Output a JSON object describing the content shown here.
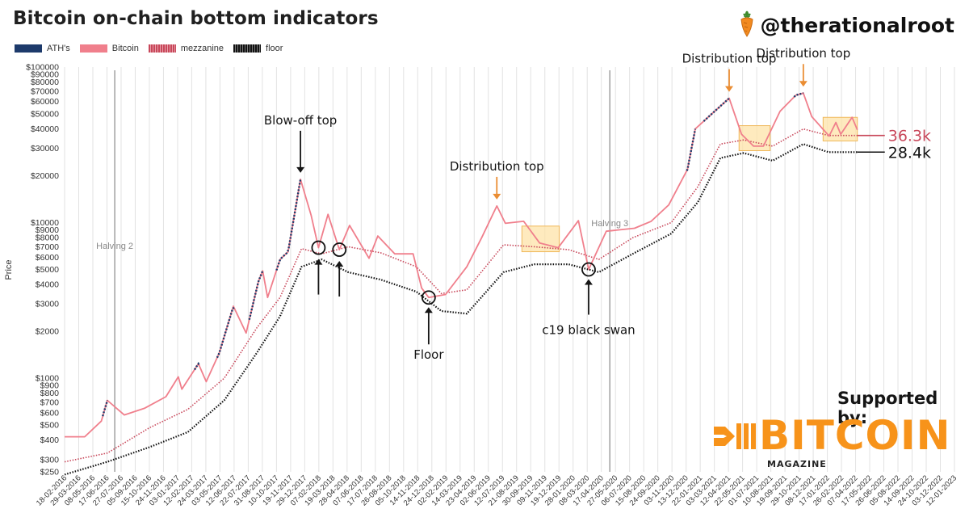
{
  "header": {
    "title": "Bitcoin on-chain bottom indicators",
    "handle": "@therationalroot"
  },
  "sponsor": {
    "supported_by": "Supported by:",
    "brand_name": "BITCOIN",
    "brand_sub": "MAGAZINE",
    "brand_color": "#f7931a"
  },
  "colors": {
    "ath": "#1d3a6b",
    "bitcoin": "#f07f8c",
    "mezzanine": "#c8475a",
    "floor": "#111111",
    "highlight_fill": "#fde3a8",
    "highlight_stroke": "#f0b85a",
    "annotation_arrow_orange": "#ea8d33",
    "halving_line": "#999999",
    "callout_red": "#c8475a",
    "callout_black": "#111111"
  },
  "chart_data": {
    "type": "line",
    "title": "Bitcoin on-chain bottom indicators",
    "ylabel": "Price",
    "xlabel": "",
    "yscale": "log",
    "ylim": [
      250,
      100000
    ],
    "xlim": [
      "2016-02-18",
      "2023-01-12"
    ],
    "y_ticks": [
      250,
      300,
      400,
      500,
      600,
      700,
      800,
      900,
      1000,
      2000,
      3000,
      4000,
      5000,
      6000,
      7000,
      8000,
      9000,
      10000,
      20000,
      30000,
      40000,
      50000,
      60000,
      70000,
      80000,
      90000,
      100000
    ],
    "y_tick_labels": [
      "$250",
      "$300",
      "$400",
      "$500",
      "$600",
      "$700",
      "$800",
      "$900",
      "$1000",
      "$2000",
      "$3000",
      "$4000",
      "$5000",
      "$6000",
      "$7000",
      "$8000",
      "$9000",
      "$10000",
      "$20000",
      "$30000",
      "$40000",
      "$50000",
      "$60000",
      "$70000",
      "$80000",
      "$90000",
      "$100000"
    ],
    "x_tick_labels": [
      "18-02-2016",
      "29-03-2016",
      "08-05-2016",
      "17-06-2016",
      "27-07-2016",
      "05-09-2016",
      "15-10-2016",
      "24-11-2016",
      "03-01-2017",
      "12-02-2017",
      "24-03-2017",
      "03-05-2017",
      "12-06-2017",
      "22-07-2017",
      "31-08-2017",
      "10-10-2017",
      "19-11-2017",
      "29-12-2017",
      "07-02-2018",
      "19-03-2018",
      "28-04-2018",
      "07-06-2018",
      "17-07-2018",
      "26-08-2018",
      "05-10-2018",
      "14-11-2018",
      "24-12-2018",
      "02-02-2019",
      "14-03-2019",
      "23-04-2019",
      "02-06-2019",
      "12-07-2019",
      "21-08-2019",
      "30-09-2019",
      "09-11-2019",
      "19-12-2019",
      "28-01-2020",
      "08-03-2020",
      "17-04-2020",
      "27-05-2020",
      "06-07-2020",
      "15-08-2020",
      "24-09-2020",
      "03-11-2020",
      "13-12-2020",
      "22-01-2021",
      "03-03-2021",
      "12-04-2021",
      "22-05-2021",
      "01-07-2021",
      "10-08-2021",
      "19-09-2021",
      "29-10-2021",
      "08-12-2021",
      "17-01-2022",
      "26-02-2022",
      "07-04-2022",
      "17-05-2022",
      "26-06-2022",
      "05-08-2022",
      "14-09-2022",
      "24-10-2022",
      "03-12-2022",
      "12-01-2023"
    ],
    "grid": true,
    "legend_placement": "top-left",
    "legend": [
      "ATH's",
      "Bitcoin",
      "mezzanine",
      "floor"
    ],
    "series": [
      {
        "name": "Bitcoin",
        "x": [
          "2016-02-18",
          "2016-04-15",
          "2016-06-01",
          "2016-06-18",
          "2016-08-05",
          "2016-10-01",
          "2016-12-01",
          "2017-01-05",
          "2017-01-15",
          "2017-03-03",
          "2017-03-25",
          "2017-05-01",
          "2017-06-10",
          "2017-07-16",
          "2017-08-20",
          "2017-09-01",
          "2017-09-15",
          "2017-10-20",
          "2017-11-12",
          "2017-12-17",
          "2018-01-16",
          "2018-02-06",
          "2018-03-05",
          "2018-04-06",
          "2018-05-05",
          "2018-06-29",
          "2018-07-24",
          "2018-09-10",
          "2018-11-01",
          "2018-11-25",
          "2018-12-15",
          "2019-02-01",
          "2019-04-02",
          "2019-05-14",
          "2019-06-26",
          "2019-07-20",
          "2019-09-10",
          "2019-10-25",
          "2019-12-17",
          "2020-02-12",
          "2020-03-12",
          "2020-05-01",
          "2020-07-20",
          "2020-09-05",
          "2020-10-25",
          "2020-12-17",
          "2021-01-08",
          "2021-02-15",
          "2021-04-14",
          "2021-05-19",
          "2021-06-22",
          "2021-07-20",
          "2021-09-05",
          "2021-10-20",
          "2021-11-10",
          "2021-12-04",
          "2022-01-22",
          "2022-02-10",
          "2022-02-24",
          "2022-03-28",
          "2022-04-12"
        ],
        "values": [
          420,
          420,
          530,
          720,
          580,
          640,
          760,
          1020,
          850,
          1240,
          950,
          1450,
          2900,
          1950,
          4200,
          4900,
          3300,
          5800,
          6500,
          19000,
          11200,
          6900,
          11300,
          6700,
          9600,
          5900,
          8200,
          6300,
          6300,
          3800,
          3300,
          3450,
          5200,
          8000,
          12800,
          9900,
          10200,
          7400,
          6900,
          10300,
          5000,
          8800,
          9200,
          10200,
          13000,
          22000,
          40000,
          48000,
          63000,
          37000,
          31000,
          31000,
          52000,
          66000,
          68000,
          48000,
          36000,
          44000,
          37000,
          47500,
          39500
        ]
      },
      {
        "name": "mezzanine",
        "x": [
          "2016-02-18",
          "2016-06-18",
          "2016-10-15",
          "2017-02-01",
          "2017-05-15",
          "2017-08-15",
          "2017-10-20",
          "2017-12-20",
          "2018-02-15",
          "2018-05-01",
          "2018-08-01",
          "2018-11-10",
          "2019-01-20",
          "2019-04-02",
          "2019-07-15",
          "2019-10-10",
          "2020-01-15",
          "2020-04-10",
          "2020-07-15",
          "2020-11-01",
          "2021-01-15",
          "2021-03-20",
          "2021-05-25",
          "2021-08-15",
          "2021-11-10",
          "2022-01-20",
          "2022-03-10",
          "2022-04-12"
        ],
        "values": [
          290,
          330,
          480,
          630,
          1000,
          2100,
          3300,
          6800,
          6300,
          7000,
          6400,
          5200,
          3500,
          3700,
          7200,
          7000,
          6700,
          5800,
          8000,
          10000,
          17000,
          32000,
          34000,
          31000,
          40000,
          36300,
          36300,
          36300
        ]
      },
      {
        "name": "floor",
        "x": [
          "2016-02-18",
          "2016-06-18",
          "2016-10-15",
          "2017-02-01",
          "2017-05-15",
          "2017-08-15",
          "2017-10-20",
          "2017-12-20",
          "2018-02-15",
          "2018-05-01",
          "2018-08-01",
          "2018-11-10",
          "2019-01-20",
          "2019-04-02",
          "2019-07-15",
          "2019-10-10",
          "2020-01-15",
          "2020-04-10",
          "2020-07-15",
          "2020-11-01",
          "2021-01-15",
          "2021-03-20",
          "2021-05-25",
          "2021-08-15",
          "2021-11-10",
          "2022-01-20",
          "2022-03-10",
          "2022-04-12"
        ],
        "values": [
          240,
          290,
          360,
          450,
          720,
          1450,
          2500,
          5200,
          5800,
          4800,
          4300,
          3600,
          2700,
          2600,
          4800,
          5400,
          5400,
          4800,
          6300,
          8500,
          13500,
          26000,
          28000,
          25000,
          32000,
          28400,
          28400,
          28400
        ]
      }
    ],
    "ath_segments": [
      [
        "2016-06-05",
        "2016-06-18"
      ],
      [
        "2017-02-20",
        "2017-03-05"
      ],
      [
        "2017-04-25",
        "2017-06-12"
      ],
      [
        "2017-07-25",
        "2017-09-01"
      ],
      [
        "2017-10-10",
        "2017-12-17"
      ],
      [
        "2020-12-15",
        "2021-01-08"
      ],
      [
        "2021-02-01",
        "2021-04-14"
      ],
      [
        "2021-10-15",
        "2021-11-10"
      ]
    ],
    "halvings": [
      {
        "label": "Halving 2",
        "date": "2016-07-09"
      },
      {
        "label": "Halving 3",
        "date": "2020-05-11"
      }
    ],
    "annotations": [
      {
        "text": "Blow-off top",
        "date": "2017-12-17",
        "price": 19000
      },
      {
        "text": "Distribution top",
        "date": "2019-06-26",
        "price": 12800
      },
      {
        "text": "Distribution top",
        "date": "2021-04-14",
        "price": 63000
      },
      {
        "text": "Distribution top",
        "date": "2021-11-10",
        "price": 68000
      },
      {
        "text": "Floor",
        "date": "2018-12-15",
        "price": 3300
      },
      {
        "text": "c19 black swan",
        "date": "2020-03-12",
        "price": 5000
      }
    ],
    "circles": [
      {
        "date": "2018-02-06",
        "price": 6900
      },
      {
        "date": "2018-04-06",
        "price": 6700
      },
      {
        "date": "2018-12-15",
        "price": 3300
      },
      {
        "date": "2020-03-12",
        "price": 5000
      }
    ],
    "highlight_zones": [
      {
        "start": "2019-09-05",
        "end": "2019-12-20",
        "low": 6500,
        "high": 9500
      },
      {
        "start": "2021-05-12",
        "end": "2021-08-08",
        "low": 29000,
        "high": 42000
      },
      {
        "start": "2022-01-05",
        "end": "2022-04-12",
        "low": 33500,
        "high": 47500
      }
    ],
    "callouts": [
      {
        "label": "36.3k",
        "value": 36300
      },
      {
        "label": "28.4k",
        "value": 28400
      }
    ]
  }
}
